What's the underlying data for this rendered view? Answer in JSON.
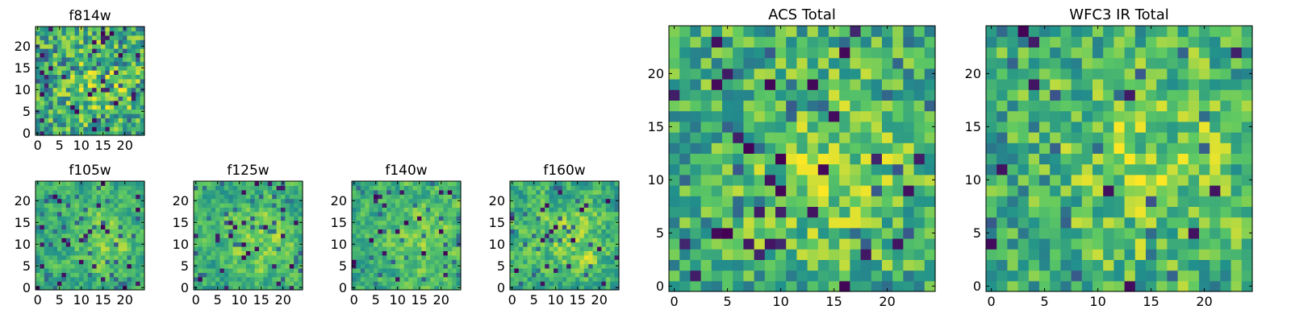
{
  "colormap": [
    "#440154",
    "#3b528b",
    "#21918c",
    "#5ec962",
    "#fde725"
  ],
  "chart_data": [
    {
      "id": "f814w",
      "type": "heatmap",
      "title": "f814w",
      "grid": 25,
      "xlim": [
        -0.5,
        24.5
      ],
      "ylim": [
        -0.5,
        24.5
      ],
      "xticks": [
        0,
        5,
        10,
        15,
        20
      ],
      "yticks": [
        0,
        5,
        10,
        15,
        20
      ],
      "seed": 11,
      "smooth": 0.0,
      "spikes": 0.05,
      "bias": 0.6
    },
    {
      "id": "f105w",
      "type": "heatmap",
      "title": "f105w",
      "grid": 25,
      "xlim": [
        -0.5,
        24.5
      ],
      "ylim": [
        -0.5,
        24.5
      ],
      "xticks": [
        0,
        5,
        10,
        15,
        20
      ],
      "yticks": [
        0,
        5,
        10,
        15,
        20
      ],
      "seed": 23,
      "smooth": 0.55,
      "spikes": 0.04,
      "bias": 0.6
    },
    {
      "id": "f125w",
      "type": "heatmap",
      "title": "f125w",
      "grid": 25,
      "xlim": [
        -0.5,
        24.5
      ],
      "ylim": [
        -0.5,
        24.5
      ],
      "xticks": [
        0,
        5,
        10,
        15,
        20
      ],
      "yticks": [
        0,
        5,
        10,
        15,
        20
      ],
      "seed": 37,
      "smooth": 0.55,
      "spikes": 0.04,
      "bias": 0.62
    },
    {
      "id": "f140w",
      "type": "heatmap",
      "title": "f140w",
      "grid": 25,
      "xlim": [
        -0.5,
        24.5
      ],
      "ylim": [
        -0.5,
        24.5
      ],
      "xticks": [
        0,
        5,
        10,
        15,
        20
      ],
      "yticks": [
        0,
        5,
        10,
        15,
        20
      ],
      "seed": 41,
      "smooth": 0.55,
      "spikes": 0.03,
      "bias": 0.62
    },
    {
      "id": "f160w",
      "type": "heatmap",
      "title": "f160w",
      "grid": 25,
      "xlim": [
        -0.5,
        24.5
      ],
      "ylim": [
        -0.5,
        24.5
      ],
      "xticks": [
        0,
        5,
        10,
        15,
        20
      ],
      "yticks": [
        0,
        5,
        10,
        15,
        20
      ],
      "seed": 53,
      "smooth": 0.45,
      "spikes": 0.04,
      "bias": 0.63
    },
    {
      "id": "acs",
      "type": "heatmap",
      "title": "ACS Total",
      "grid": 25,
      "xlim": [
        -0.5,
        24.5
      ],
      "ylim": [
        -0.5,
        24.5
      ],
      "xticks": [
        0,
        5,
        10,
        15,
        20
      ],
      "yticks": [
        0,
        5,
        10,
        15,
        20
      ],
      "seed": 67,
      "smooth": 0.15,
      "spikes": 0.03,
      "bias": 0.64
    },
    {
      "id": "wfc3",
      "type": "heatmap",
      "title": "WFC3 IR Total",
      "grid": 25,
      "xlim": [
        -0.5,
        24.5
      ],
      "ylim": [
        -0.5,
        24.5
      ],
      "xticks": [
        0,
        5,
        10,
        15,
        20
      ],
      "yticks": [
        0,
        5,
        10,
        15,
        20
      ],
      "seed": 79,
      "smooth": 0.15,
      "spikes": 0.03,
      "bias": 0.64
    }
  ]
}
